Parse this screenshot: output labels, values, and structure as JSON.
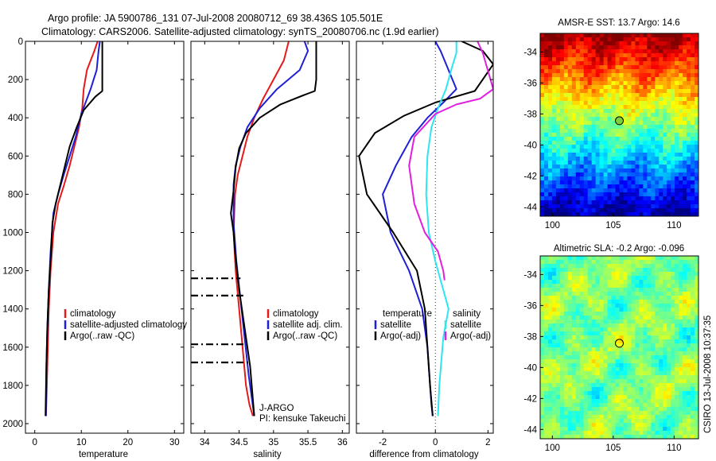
{
  "header": {
    "line1": "Argo profile: JA 5900786_131 07-Jul-2008 20080712_69 38.436S 105.501E",
    "line2": "Climatology: CARS2006. Satellite-adjusted climatology: synTS_20080706.nc (1.9d earlier)"
  },
  "footer": {
    "program": "J-ARGO",
    "pi": "PI: kensuke Takeuchi",
    "stamp": "CSIRO 13-Jul-2008 10:37:35"
  },
  "colors": {
    "climatology": "#e41a1c",
    "satellite": "#1f1fd6",
    "argo": "#000000",
    "salinity_diff": "#e020e0",
    "salinity_sat_diff": "#2ee6f0",
    "marker": "#7cd13a"
  },
  "chart_data": [
    {
      "type": "line",
      "id": "temperature",
      "xlabel": "temperature",
      "ylabel": "",
      "xlim": [
        -2,
        32
      ],
      "ylim": [
        2050,
        0
      ],
      "xticks": [
        0,
        10,
        20,
        30
      ],
      "yticks": [
        0,
        200,
        400,
        600,
        800,
        1000,
        1200,
        1400,
        1600,
        1800,
        2000
      ],
      "legend": [
        "climatology",
        "satellite-adjusted climatology",
        "Argo(..raw -QC)"
      ],
      "legend_position": "lower-right",
      "series": [
        {
          "name": "climatology",
          "color_key": "climatology",
          "x": [
            13.5,
            12.8,
            11.2,
            10.5,
            10.2,
            9.5,
            8.5,
            7.5,
            6.3,
            5.0,
            4.0,
            3.4,
            3.0,
            2.8,
            2.6,
            2.4
          ],
          "y": [
            0,
            50,
            150,
            250,
            350,
            450,
            550,
            650,
            750,
            850,
            1000,
            1200,
            1400,
            1600,
            1800,
            1960
          ]
        },
        {
          "name": "satellite-adjusted climatology",
          "color_key": "satellite",
          "x": [
            14.0,
            13.7,
            13.3,
            12.0,
            10.0,
            8.8,
            7.5,
            6.2,
            5.0,
            4.0,
            3.4,
            3.0,
            2.7,
            2.5,
            2.4
          ],
          "y": [
            0,
            50,
            150,
            250,
            380,
            500,
            600,
            700,
            800,
            900,
            1100,
            1300,
            1500,
            1700,
            1960
          ]
        },
        {
          "name": "Argo(..raw -QC)",
          "color_key": "argo",
          "x": [
            14.5,
            14.5,
            14.5,
            14.5,
            13.0,
            10.5,
            9.0,
            7.5,
            6.0,
            4.5,
            3.8,
            3.5,
            3.0,
            2.7,
            2.5,
            2.3
          ],
          "y": [
            0,
            100,
            200,
            260,
            290,
            360,
            450,
            550,
            700,
            850,
            950,
            1100,
            1300,
            1500,
            1700,
            1960
          ]
        }
      ],
      "qc_flags": [],
      "annotations": []
    },
    {
      "type": "line",
      "id": "salinity",
      "xlabel": "salinity",
      "ylabel": "",
      "xlim": [
        33.8,
        36.1
      ],
      "ylim": [
        2050,
        0
      ],
      "xticks": [
        34,
        34.5,
        35,
        35.5,
        36
      ],
      "yticks": [
        0,
        200,
        400,
        600,
        800,
        1000,
        1200,
        1400,
        1600,
        1800,
        2000
      ],
      "legend": [
        "climatology",
        "satellite adj. clim.",
        "Argo(..raw -QC)"
      ],
      "legend_position": "lower-right",
      "series": [
        {
          "name": "climatology",
          "color_key": "climatology",
          "x": [
            35.22,
            35.15,
            35.0,
            34.85,
            34.72,
            34.62,
            34.55,
            34.48,
            34.44,
            34.42,
            34.45,
            34.5,
            34.55,
            34.6,
            34.65,
            34.7
          ],
          "y": [
            0,
            100,
            200,
            300,
            400,
            500,
            600,
            700,
            800,
            1000,
            1200,
            1400,
            1600,
            1800,
            1900,
            1960
          ]
        },
        {
          "name": "satellite adj. clim.",
          "color_key": "satellite",
          "x": [
            35.45,
            35.5,
            35.38,
            35.05,
            34.8,
            34.62,
            34.52,
            34.45,
            34.42,
            34.42,
            34.46,
            34.52,
            34.58,
            34.64,
            34.72
          ],
          "y": [
            0,
            50,
            150,
            250,
            350,
            450,
            550,
            650,
            750,
            950,
            1150,
            1350,
            1550,
            1750,
            1960
          ]
        },
        {
          "name": "Argo(..raw -QC)",
          "color_key": "argo",
          "x": [
            35.62,
            35.62,
            35.62,
            35.6,
            35.45,
            35.1,
            34.8,
            34.6,
            34.5,
            34.45,
            34.42,
            34.38,
            34.42,
            34.44,
            34.5,
            34.58,
            34.66,
            34.72
          ],
          "y": [
            0,
            100,
            200,
            260,
            280,
            330,
            400,
            480,
            560,
            660,
            780,
            900,
            1000,
            1100,
            1300,
            1500,
            1700,
            1960
          ]
        }
      ],
      "qc_flags": [
        {
          "y": 1240,
          "x_from": 33.8,
          "x_to": 34.52
        },
        {
          "y": 1330,
          "x_from": 33.8,
          "x_to": 34.56
        },
        {
          "y": 1585,
          "x_from": 33.8,
          "x_to": 34.62
        },
        {
          "y": 1680,
          "x_from": 33.8,
          "x_to": 34.66
        }
      ],
      "annotations": []
    },
    {
      "type": "line",
      "id": "difference",
      "xlabel": "difference from climatology",
      "ylabel": "",
      "xlim": [
        -3,
        2.2
      ],
      "ylim": [
        2050,
        0
      ],
      "xticks": [
        -2,
        0,
        2
      ],
      "yticks": [
        0,
        200,
        400,
        600,
        800,
        1000,
        1200,
        1400,
        1600,
        1800,
        2000
      ],
      "legend": [
        "temperature",
        "satellite",
        "Argo(-adj)",
        "salinity",
        "satellite",
        "Argo(-adj)"
      ],
      "legend_position": "lower-right",
      "zero_line": true,
      "series": [
        {
          "name": "satellite",
          "group": "temperature",
          "color_key": "satellite",
          "x": [
            0,
            0.2,
            0.5,
            0.8,
            0.3,
            -0.3,
            -0.9,
            -1.5,
            -2.0,
            -1.7,
            -1.0,
            -0.5,
            -0.3,
            -0.2,
            -0.15,
            -0.1
          ],
          "y": [
            0,
            50,
            150,
            250,
            320,
            400,
            500,
            650,
            800,
            1000,
            1200,
            1400,
            1600,
            1800,
            1900,
            1960
          ]
        },
        {
          "name": "Argo(-adj)",
          "group": "temperature",
          "color_key": "argo",
          "x": [
            1.0,
            1.8,
            2.2,
            1.5,
            0.0,
            -1.2,
            -2.3,
            -2.9,
            -2.6,
            -1.6,
            -0.7,
            -0.4,
            -0.3,
            -0.2,
            -0.1
          ],
          "y": [
            0,
            50,
            120,
            260,
            320,
            390,
            480,
            600,
            800,
            1000,
            1200,
            1400,
            1600,
            1800,
            1960
          ]
        },
        {
          "name": "satellite",
          "group": "salinity",
          "color_key": "salinity_sat_diff",
          "x": [
            0.8,
            0.8,
            0.6,
            0.4,
            0.1,
            -0.15,
            -0.3,
            -0.35,
            -0.25,
            0.0,
            0.3,
            0.5,
            0.3,
            0.15,
            0.1
          ],
          "y": [
            0,
            60,
            150,
            250,
            350,
            450,
            600,
            800,
            1000,
            1150,
            1300,
            1400,
            1550,
            1800,
            1960
          ]
        },
        {
          "name": "Argo(-adj)",
          "group": "salinity",
          "color_key": "salinity_diff",
          "x": [
            1.6,
            1.8,
            2.2,
            1.7,
            0.8,
            0.0,
            -0.8,
            -1.0,
            -0.8,
            -0.4,
            0.1,
            0.3,
            0.35
          ],
          "y": [
            0,
            60,
            250,
            300,
            330,
            380,
            500,
            650,
            850,
            1000,
            1100,
            1200,
            1250
          ]
        }
      ],
      "qc_flags": [],
      "annotations": []
    },
    {
      "type": "heatmap",
      "id": "sst",
      "title": "AMSR-E SST: 13.7 Argo: 14.6",
      "xlim": [
        99,
        112
      ],
      "ylim": [
        -44.6,
        -32.8
      ],
      "xticks": [
        100,
        105,
        110
      ],
      "yticks": [
        -34,
        -36,
        -38,
        -40,
        -42,
        -44
      ],
      "float_position": {
        "lon": 105.501,
        "lat": -38.436
      }
    },
    {
      "type": "heatmap",
      "id": "sla",
      "title": "Altimetric SLA: -0.2 Argo: -0.096",
      "xlim": [
        99,
        112
      ],
      "ylim": [
        -44.6,
        -32.8
      ],
      "xticks": [
        100,
        105,
        110
      ],
      "yticks": [
        -34,
        -36,
        -38,
        -40,
        -42,
        -44
      ],
      "float_position": {
        "lon": 105.501,
        "lat": -38.436
      }
    }
  ]
}
